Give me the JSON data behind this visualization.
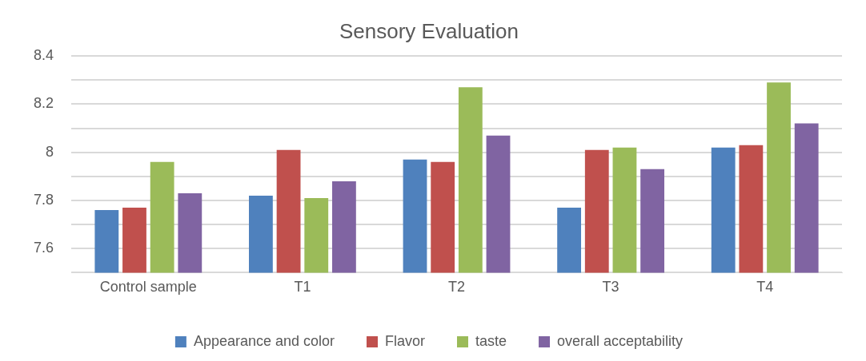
{
  "chart_data": {
    "type": "bar",
    "title": "Sensory Evaluation",
    "categories": [
      "Control sample",
      "T1",
      "T2",
      "T3",
      "T4"
    ],
    "series": [
      {
        "name": "Appearance and color",
        "color": "#4f81bd",
        "values": [
          7.76,
          7.82,
          7.97,
          7.77,
          8.02
        ]
      },
      {
        "name": "Flavor",
        "color": "#c0504d",
        "values": [
          7.77,
          8.01,
          7.96,
          8.01,
          8.03
        ]
      },
      {
        "name": "taste",
        "color": "#9bbb59",
        "values": [
          7.96,
          7.81,
          8.27,
          8.02,
          8.29
        ]
      },
      {
        "name": "overall acceptability",
        "color": "#8064a2",
        "values": [
          7.83,
          7.88,
          8.07,
          7.93,
          8.12
        ]
      }
    ],
    "ylim": [
      7.5,
      8.4
    ],
    "yticks": [
      {
        "value": 7.5,
        "label": null
      },
      7.6,
      {
        "value": 7.7,
        "label": null
      },
      7.8,
      {
        "value": 7.9,
        "label": null
      },
      8,
      {
        "value": 8.1,
        "label": null
      },
      8.2,
      {
        "value": 8.3,
        "label": null
      },
      8.4
    ],
    "grid": "y",
    "legend": "bottom"
  }
}
